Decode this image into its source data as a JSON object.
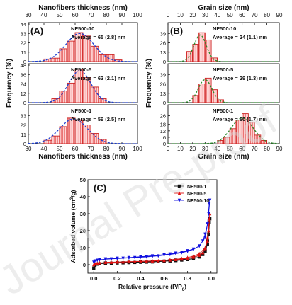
{
  "watermark": "Journal Pre-proof",
  "colors": {
    "bar_fill": "#ffd6d6",
    "bar_stroke": "#cc2222",
    "hatch": "#e04040",
    "fit": "#1f3fd0",
    "fit_green": "#2e8b2e",
    "s1": "#111111",
    "s2": "#e01010",
    "s3": "#1010e0"
  },
  "chart_data": [
    {
      "type": "bar",
      "panel": "(A)",
      "title": "Nanofibers thickness (nm)",
      "xlabel": "Nanofibers thickness (nm)",
      "ylabel": "Frequency (%)",
      "xlim": [
        30,
        100
      ],
      "xticks": [
        30,
        40,
        50,
        60,
        70,
        80,
        90,
        100
      ],
      "bin_width": 5,
      "fit_color": "fit",
      "subplots": [
        {
          "label": "NF500-10",
          "average": "Average = 65 (2.8) nm",
          "ylim": [
            0,
            44
          ],
          "yticks": [
            0,
            11,
            22,
            33,
            44
          ],
          "bin_starts": [
            40,
            45,
            50,
            55,
            60,
            65,
            70,
            75,
            80,
            85
          ],
          "values": [
            3,
            4,
            15,
            24,
            34,
            30,
            18,
            8,
            8,
            2
          ],
          "fit": {
            "mean": 63,
            "sd": 9,
            "peak": 33
          }
        },
        {
          "label": "NF500-5",
          "average": "Average = 63 (2.1) nm",
          "ylim": [
            0,
            48
          ],
          "yticks": [
            0,
            12,
            24,
            36,
            48
          ],
          "bin_starts": [
            45,
            50,
            55,
            60,
            65,
            70,
            75
          ],
          "values": [
            5,
            15,
            25,
            43,
            32,
            20,
            5
          ],
          "fit": {
            "mean": 63,
            "sd": 7,
            "peak": 41
          }
        },
        {
          "label": "NF500-1",
          "average": "Average = 59 (2.5) nm",
          "ylim": [
            0,
            44
          ],
          "yticks": [
            0,
            11,
            22,
            33
          ],
          "bin_starts": [
            40,
            45,
            50,
            55,
            60,
            65,
            70,
            75
          ],
          "values": [
            4,
            9,
            20,
            30,
            28,
            22,
            12,
            5
          ],
          "fit": {
            "mean": 59,
            "sd": 9,
            "peak": 29
          }
        }
      ]
    },
    {
      "type": "bar",
      "panel": "(B)",
      "title": "Grain size (nm)",
      "xlabel": "Grain size (nm)",
      "ylabel": "Frequency (%)",
      "xlim": [
        0,
        90
      ],
      "xticks": [
        0,
        10,
        20,
        30,
        40,
        50,
        60,
        70,
        80,
        90
      ],
      "bin_width": 5,
      "fit_color": "fit_green",
      "subplots": [
        {
          "label": "NF500-10",
          "average": "Average = 24 (1.1) nm",
          "ylim": [
            0,
            52
          ],
          "yticks": [
            0,
            13,
            26,
            39
          ],
          "bin_starts": [
            15,
            20,
            25,
            30,
            35
          ],
          "values": [
            14,
            24,
            40,
            30,
            5
          ],
          "fit": {
            "mean": 26,
            "sd": 5,
            "peak": 37
          }
        },
        {
          "label": "NF500-5",
          "average": "Average = 29 (1.3) nm",
          "ylim": [
            0,
            52
          ],
          "yticks": [
            0,
            13,
            26,
            39
          ],
          "bin_starts": [
            20,
            25,
            30,
            35,
            40
          ],
          "values": [
            10,
            26,
            34,
            18,
            4
          ],
          "fit": {
            "mean": 30,
            "sd": 5.5,
            "peak": 32
          }
        },
        {
          "label": "NF500-1",
          "average": "Average = 60 (1.7) nm",
          "ylim": [
            0,
            35
          ],
          "yticks": [
            0,
            6,
            12,
            18,
            26
          ],
          "bin_starts": [
            40,
            45,
            50,
            55,
            60,
            65,
            70,
            75
          ],
          "values": [
            3,
            6,
            14,
            22,
            28,
            20,
            8,
            3
          ],
          "fit": {
            "mean": 60,
            "sd": 9,
            "peak": 24
          }
        }
      ]
    },
    {
      "type": "line",
      "panel": "(C)",
      "xlabel": "Relative pressure (P/P",
      "xlabel_sub": "0",
      "xlabel_end": ")",
      "ylabel": "Adsorbed volume (cm",
      "ylabel_sup": "3",
      "ylabel_end": "/g)",
      "xlim": [
        -0.05,
        1.05
      ],
      "ylim": [
        -5,
        50
      ],
      "xticks": [
        0.0,
        0.2,
        0.4,
        0.6,
        0.8,
        1.0
      ],
      "xtick_labels": [
        "0.0",
        "0.2",
        "0.4",
        "0.6",
        "0.8",
        "1.0"
      ],
      "yticks": [
        0,
        10,
        20,
        30,
        40,
        50
      ],
      "legend": "top-right",
      "series": [
        {
          "name": "NF500-1",
          "color": "s1",
          "marker": "square",
          "x": [
            0.0,
            0.01,
            0.03,
            0.05,
            0.1,
            0.15,
            0.2,
            0.25,
            0.3,
            0.35,
            0.4,
            0.45,
            0.5,
            0.55,
            0.6,
            0.65,
            0.7,
            0.75,
            0.8,
            0.85,
            0.9,
            0.93,
            0.95,
            0.97,
            0.98,
            0.99,
            0.985,
            0.97,
            0.95,
            0.9,
            0.85,
            0.8,
            0.75,
            0.7,
            0.65,
            0.6,
            0.5,
            0.4,
            0.3,
            0.2,
            0.1
          ],
          "y": [
            -2,
            -0.5,
            0.3,
            0.5,
            0.8,
            0.9,
            1.0,
            1.1,
            1.2,
            1.3,
            1.4,
            1.5,
            1.6,
            1.8,
            2.0,
            2.2,
            2.4,
            2.7,
            3.0,
            3.6,
            4.5,
            6,
            8,
            12,
            18,
            27,
            25,
            14,
            9,
            5.5,
            4.2,
            3.5,
            3.0,
            2.7,
            2.4,
            2.1,
            1.8,
            1.6,
            1.4,
            1.2,
            1.0
          ]
        },
        {
          "name": "NF500-5",
          "color": "s2",
          "marker": "triangle",
          "x": [
            0.0,
            0.01,
            0.03,
            0.05,
            0.1,
            0.15,
            0.2,
            0.25,
            0.3,
            0.35,
            0.4,
            0.45,
            0.5,
            0.55,
            0.6,
            0.65,
            0.7,
            0.75,
            0.8,
            0.85,
            0.9,
            0.93,
            0.95,
            0.97,
            0.98,
            0.99,
            0.985,
            0.97,
            0.95,
            0.9,
            0.85,
            0.8,
            0.75,
            0.7,
            0.65,
            0.6,
            0.5,
            0.4,
            0.3,
            0.2,
            0.1
          ],
          "y": [
            0.0,
            0.6,
            0.9,
            1.1,
            1.3,
            1.4,
            1.5,
            1.6,
            1.7,
            1.8,
            1.9,
            2.0,
            2.1,
            2.3,
            2.5,
            2.7,
            3.0,
            3.3,
            3.7,
            4.4,
            5.5,
            7,
            9.5,
            14,
            20,
            30,
            27,
            16,
            10,
            6.5,
            5.0,
            4.2,
            3.6,
            3.2,
            2.9,
            2.6,
            2.2,
            2.0,
            1.8,
            1.6,
            1.4
          ]
        },
        {
          "name": "NF500-10",
          "color": "s3",
          "marker": "triangle-down",
          "x": [
            0.0,
            0.01,
            0.03,
            0.05,
            0.1,
            0.15,
            0.2,
            0.25,
            0.3,
            0.35,
            0.4,
            0.45,
            0.5,
            0.55,
            0.6,
            0.65,
            0.7,
            0.75,
            0.8,
            0.85,
            0.9,
            0.93,
            0.95,
            0.97,
            0.98,
            0.99,
            0.985,
            0.97,
            0.95,
            0.9,
            0.85,
            0.8,
            0.75,
            0.7,
            0.65,
            0.6,
            0.5,
            0.4,
            0.3,
            0.2,
            0.1
          ],
          "y": [
            1.5,
            2.2,
            2.6,
            2.9,
            3.2,
            3.4,
            3.6,
            3.8,
            4.0,
            4.2,
            4.4,
            4.6,
            4.9,
            5.2,
            5.6,
            6.0,
            6.5,
            7.1,
            7.9,
            9.0,
            11,
            14,
            18,
            24,
            30,
            38,
            36,
            24,
            16,
            11,
            9.2,
            8.2,
            7.4,
            6.8,
            6.3,
            5.9,
            5.2,
            4.7,
            4.2,
            3.8,
            3.4
          ]
        }
      ]
    }
  ]
}
